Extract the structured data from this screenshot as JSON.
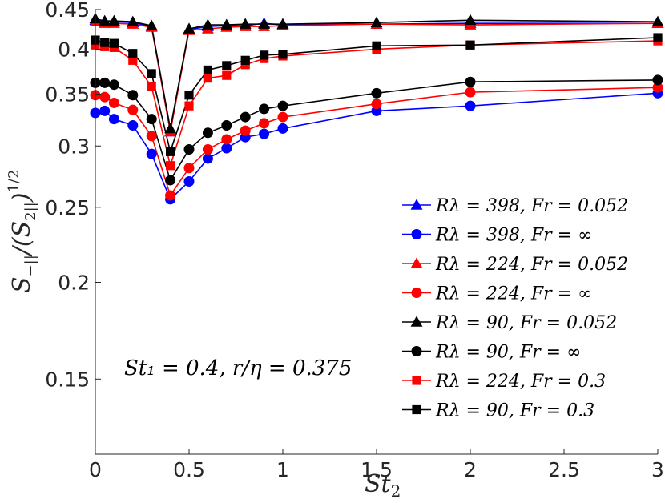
{
  "chart_data": {
    "type": "line",
    "title": "",
    "xlabel": "St_2",
    "ylabel": "S_{-||}/(S_{2||})^{1/2}",
    "xlim": [
      0,
      3
    ],
    "ylim": [
      0.12,
      0.45
    ],
    "yscale": "log",
    "xticks": [
      0,
      0.5,
      1,
      1.5,
      2,
      2.5,
      3
    ],
    "xtick_labels": [
      "0",
      "0.5",
      "1",
      "1.5",
      "2",
      "2.5",
      "3"
    ],
    "yticks": [
      0.15,
      0.2,
      0.25,
      0.3,
      0.35,
      0.4,
      0.45
    ],
    "ytick_labels": [
      "0.15",
      "0.2",
      "0.25",
      "0.3",
      "0.35",
      "0.4",
      "0.45"
    ],
    "grid": false,
    "legend_position": "bottom-right",
    "annotation": "St₁ = 0.4, r/η = 0.375",
    "series": [
      {
        "name": "Rλ = 398, Fr = 0.052",
        "color": "#0000ff",
        "marker": "triangle",
        "x": [
          0,
          0.05,
          0.1,
          0.2,
          0.3,
          0.4,
          0.5,
          0.6,
          0.7,
          0.8,
          0.9,
          1,
          1.5,
          2,
          3
        ],
        "values": [
          0.436,
          0.434,
          0.434,
          0.433,
          0.428,
          0.313,
          0.424,
          0.428,
          0.429,
          0.429,
          0.432,
          0.43,
          0.431,
          0.432,
          0.432
        ]
      },
      {
        "name": "Rλ = 398, Fr = ∞",
        "color": "#0000ff",
        "marker": "circle",
        "x": [
          0,
          0.05,
          0.1,
          0.2,
          0.3,
          0.4,
          0.5,
          0.6,
          0.7,
          0.8,
          0.9,
          1,
          1.5,
          2,
          3
        ],
        "values": [
          0.331,
          0.333,
          0.325,
          0.319,
          0.293,
          0.256,
          0.27,
          0.289,
          0.298,
          0.308,
          0.311,
          0.316,
          0.333,
          0.338,
          0.351
        ]
      },
      {
        "name": "Rλ = 224, Fr = 0.052",
        "color": "#ff0000",
        "marker": "triangle",
        "x": [
          0,
          0.05,
          0.1,
          0.2,
          0.3,
          0.4,
          0.5,
          0.6,
          0.7,
          0.8,
          0.9,
          1,
          1.5,
          2,
          3
        ],
        "values": [
          0.434,
          0.432,
          0.432,
          0.431,
          0.427,
          0.313,
          0.423,
          0.425,
          0.427,
          0.428,
          0.428,
          0.429,
          0.431,
          0.43,
          0.432
        ]
      },
      {
        "name": "Rλ = 224, Fr = ∞",
        "color": "#ff0000",
        "marker": "circle",
        "x": [
          0,
          0.05,
          0.1,
          0.2,
          0.3,
          0.4,
          0.5,
          0.6,
          0.7,
          0.8,
          0.9,
          1,
          1.5,
          2,
          3
        ],
        "values": [
          0.349,
          0.347,
          0.341,
          0.334,
          0.309,
          0.259,
          0.281,
          0.297,
          0.306,
          0.314,
          0.321,
          0.327,
          0.34,
          0.352,
          0.357
        ]
      },
      {
        "name": "Rλ = 90, Fr = 0.052",
        "color": "#000000",
        "marker": "triangle",
        "x": [
          0,
          0.05,
          0.1,
          0.2,
          0.3,
          0.4,
          0.5,
          0.6,
          0.7,
          0.8,
          0.9,
          1,
          1.5,
          2,
          3
        ],
        "values": [
          0.438,
          0.435,
          0.435,
          0.434,
          0.429,
          0.316,
          0.425,
          0.43,
          0.43,
          0.431,
          0.431,
          0.431,
          0.433,
          0.436,
          0.434
        ]
      },
      {
        "name": "Rλ = 90, Fr = ∞",
        "color": "#000000",
        "marker": "circle",
        "x": [
          0,
          0.05,
          0.1,
          0.2,
          0.3,
          0.4,
          0.5,
          0.6,
          0.7,
          0.8,
          0.9,
          1,
          1.5,
          2,
          3
        ],
        "values": [
          0.362,
          0.362,
          0.36,
          0.349,
          0.325,
          0.271,
          0.297,
          0.312,
          0.319,
          0.327,
          0.335,
          0.338,
          0.351,
          0.363,
          0.365
        ]
      },
      {
        "name": "Rλ = 224, Fr = 0.3",
        "color": "#ff0000",
        "marker": "square",
        "x": [
          0,
          0.05,
          0.1,
          0.2,
          0.3,
          0.4,
          0.5,
          0.6,
          0.7,
          0.8,
          0.9,
          1,
          1.5,
          2,
          3
        ],
        "values": [
          0.405,
          0.403,
          0.402,
          0.387,
          0.358,
          0.283,
          0.338,
          0.367,
          0.37,
          0.382,
          0.389,
          0.392,
          0.4,
          0.405,
          0.41
        ]
      },
      {
        "name": "Rλ = 90, Fr = 0.3",
        "color": "#000000",
        "marker": "square",
        "x": [
          0,
          0.05,
          0.1,
          0.2,
          0.3,
          0.4,
          0.5,
          0.6,
          0.7,
          0.8,
          0.9,
          1,
          1.5,
          2,
          3
        ],
        "values": [
          0.411,
          0.408,
          0.407,
          0.395,
          0.372,
          0.295,
          0.349,
          0.376,
          0.381,
          0.387,
          0.393,
          0.394,
          0.404,
          0.405,
          0.414
        ]
      }
    ],
    "legend": [
      {
        "label": "Rλ = 398, Fr = 0.052",
        "color": "#0000ff",
        "marker": "triangle"
      },
      {
        "label": "Rλ = 398, Fr = ∞",
        "color": "#0000ff",
        "marker": "circle"
      },
      {
        "label": "Rλ = 224, Fr = 0.052",
        "color": "#ff0000",
        "marker": "triangle"
      },
      {
        "label": "Rλ = 224, Fr = ∞",
        "color": "#ff0000",
        "marker": "circle"
      },
      {
        "label": "Rλ = 90, Fr = 0.052",
        "color": "#000000",
        "marker": "triangle"
      },
      {
        "label": "Rλ = 90, Fr = ∞",
        "color": "#000000",
        "marker": "circle"
      },
      {
        "label": "Rλ = 224, Fr = 0.3",
        "color": "#ff0000",
        "marker": "square"
      },
      {
        "label": "Rλ = 90, Fr = 0.3",
        "color": "#000000",
        "marker": "square"
      }
    ]
  }
}
